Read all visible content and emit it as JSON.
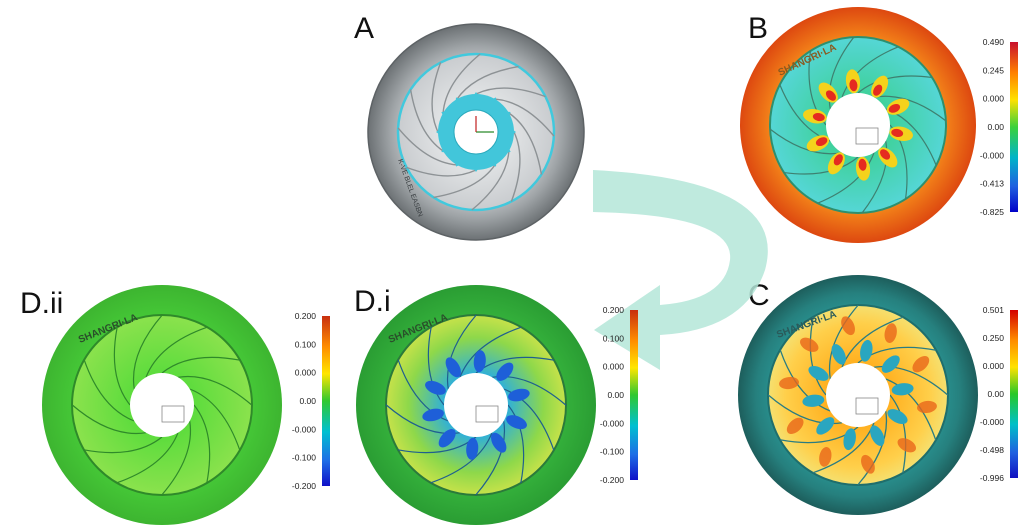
{
  "panels": {
    "a": {
      "label": "A",
      "engraving": "K-VE BLEL EASBN"
    },
    "b": {
      "label": "B",
      "engraving": "SHANGRI·LA",
      "scale": [
        "0.490",
        "0.245",
        "0.000",
        "0.00",
        "-0.000",
        "-0.413",
        "-0.825"
      ]
    },
    "c": {
      "label": "C",
      "engraving": "SHANGRI·LA",
      "scale": [
        "0.501",
        "0.250",
        "0.000",
        "0.00",
        "-0.000",
        "-0.498",
        "-0.996"
      ]
    },
    "di": {
      "label": "D.i",
      "engraving": "SHANGRI·LA",
      "scale": [
        "0.200",
        "0.100",
        "0.000",
        "0.00",
        "-0.000",
        "-0.100",
        "-0.200"
      ]
    },
    "dii": {
      "label": "D.ii",
      "engraving": "SHANGRI·LA",
      "scale": [
        "0.200",
        "0.100",
        "0.000",
        "0.00",
        "-0.000",
        "-0.100",
        "-0.200"
      ]
    }
  },
  "colors": {
    "arrow": "#b4e6d8",
    "housing_gray": "#8f9497",
    "hub_cyan": "#3cc9dc",
    "legend_b": [
      "#c8102e",
      "#ff8000",
      "#ffe100",
      "#3bd13b",
      "#00b4c8",
      "#2060e0",
      "#0000c8"
    ],
    "legend_c": [
      "#d40000",
      "#ff8c00",
      "#ffe200",
      "#28c828",
      "#00c0c8",
      "#2060e0",
      "#1010c0"
    ],
    "legend_d": [
      "#c83010",
      "#ff8c00",
      "#ffe600",
      "#30c830",
      "#00c0d0",
      "#1e6ee6",
      "#1010c8"
    ]
  }
}
